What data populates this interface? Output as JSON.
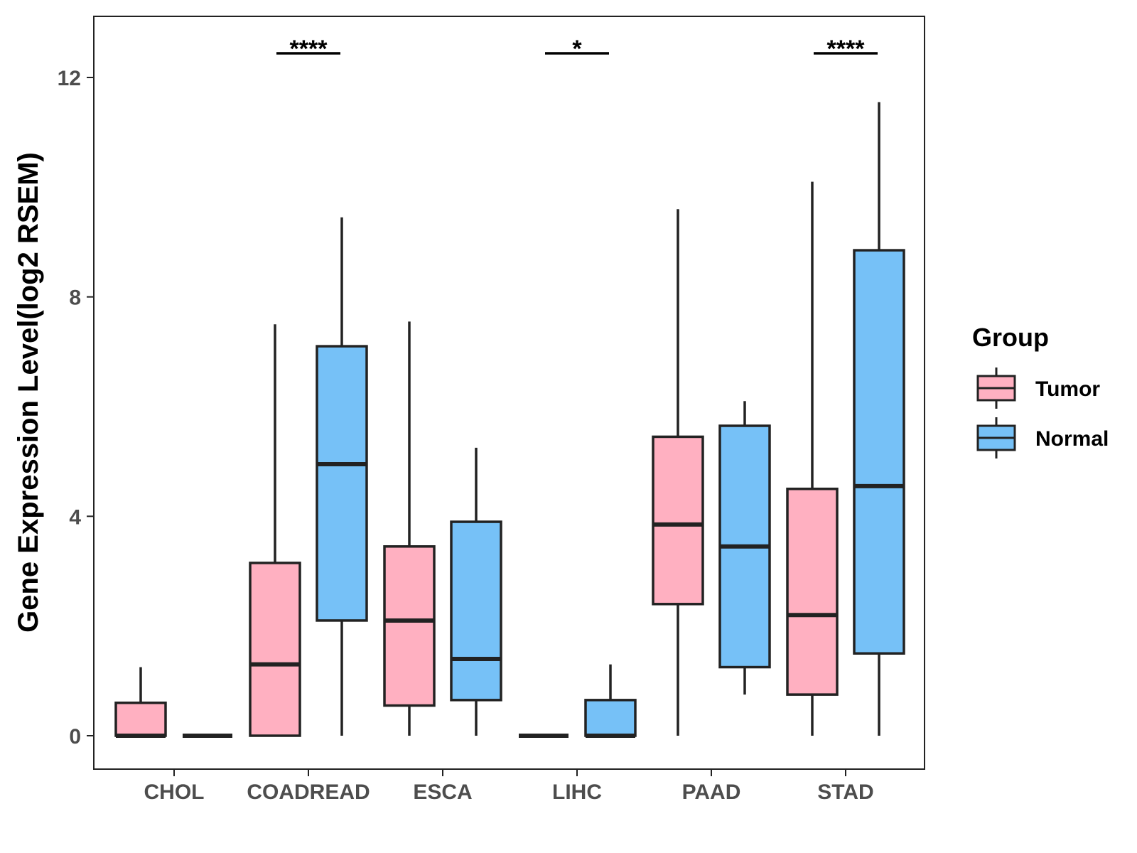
{
  "chart_data": {
    "type": "boxplot",
    "title": "",
    "xlabel": "",
    "ylabel": "Gene Expression Level(log2 RSEM)",
    "ylim": [
      -0.6,
      13.1
    ],
    "yticks": [
      0,
      4,
      8,
      12
    ],
    "ytick_labels": [
      "0",
      "4",
      "8",
      "12"
    ],
    "categories": [
      "CHOL",
      "COADREAD",
      "ESCA",
      "LIHC",
      "PAAD",
      "STAD"
    ],
    "series": [
      {
        "name": "Tumor",
        "color": "#FFB0C1",
        "boxes": [
          {
            "min": 0,
            "q1": 0,
            "median": 0,
            "q3": 0.6,
            "max": 1.25
          },
          {
            "min": 0,
            "q1": 0,
            "median": 1.3,
            "q3": 3.15,
            "max": 7.5
          },
          {
            "min": 0,
            "q1": 0.55,
            "median": 2.1,
            "q3": 3.45,
            "max": 7.55
          },
          {
            "min": 0,
            "q1": 0,
            "median": 0,
            "q3": 0,
            "max": 0
          },
          {
            "min": 0,
            "q1": 2.4,
            "median": 3.85,
            "q3": 5.45,
            "max": 9.6
          },
          {
            "min": 0,
            "q1": 0.75,
            "median": 2.2,
            "q3": 4.5,
            "max": 10.1
          }
        ]
      },
      {
        "name": "Normal",
        "color": "#76C1F7",
        "boxes": [
          {
            "min": 0,
            "q1": 0,
            "median": 0,
            "q3": 0,
            "max": 0
          },
          {
            "min": 0,
            "q1": 2.1,
            "median": 4.95,
            "q3": 7.1,
            "max": 9.45
          },
          {
            "min": 0,
            "q1": 0.65,
            "median": 1.4,
            "q3": 3.9,
            "max": 5.25
          },
          {
            "min": 0,
            "q1": 0,
            "median": 0,
            "q3": 0.65,
            "max": 1.3
          },
          {
            "min": 0.75,
            "q1": 1.25,
            "median": 3.45,
            "q3": 5.65,
            "max": 6.1
          },
          {
            "min": 0,
            "q1": 1.5,
            "median": 4.55,
            "q3": 8.85,
            "max": 11.55
          }
        ]
      }
    ],
    "significance": [
      {
        "category": "COADREAD",
        "label": "****"
      },
      {
        "category": "LIHC",
        "label": "*"
      },
      {
        "category": "STAD",
        "label": "****"
      }
    ],
    "legend": {
      "title": "Group",
      "position": "right",
      "items": [
        "Tumor",
        "Normal"
      ]
    }
  }
}
